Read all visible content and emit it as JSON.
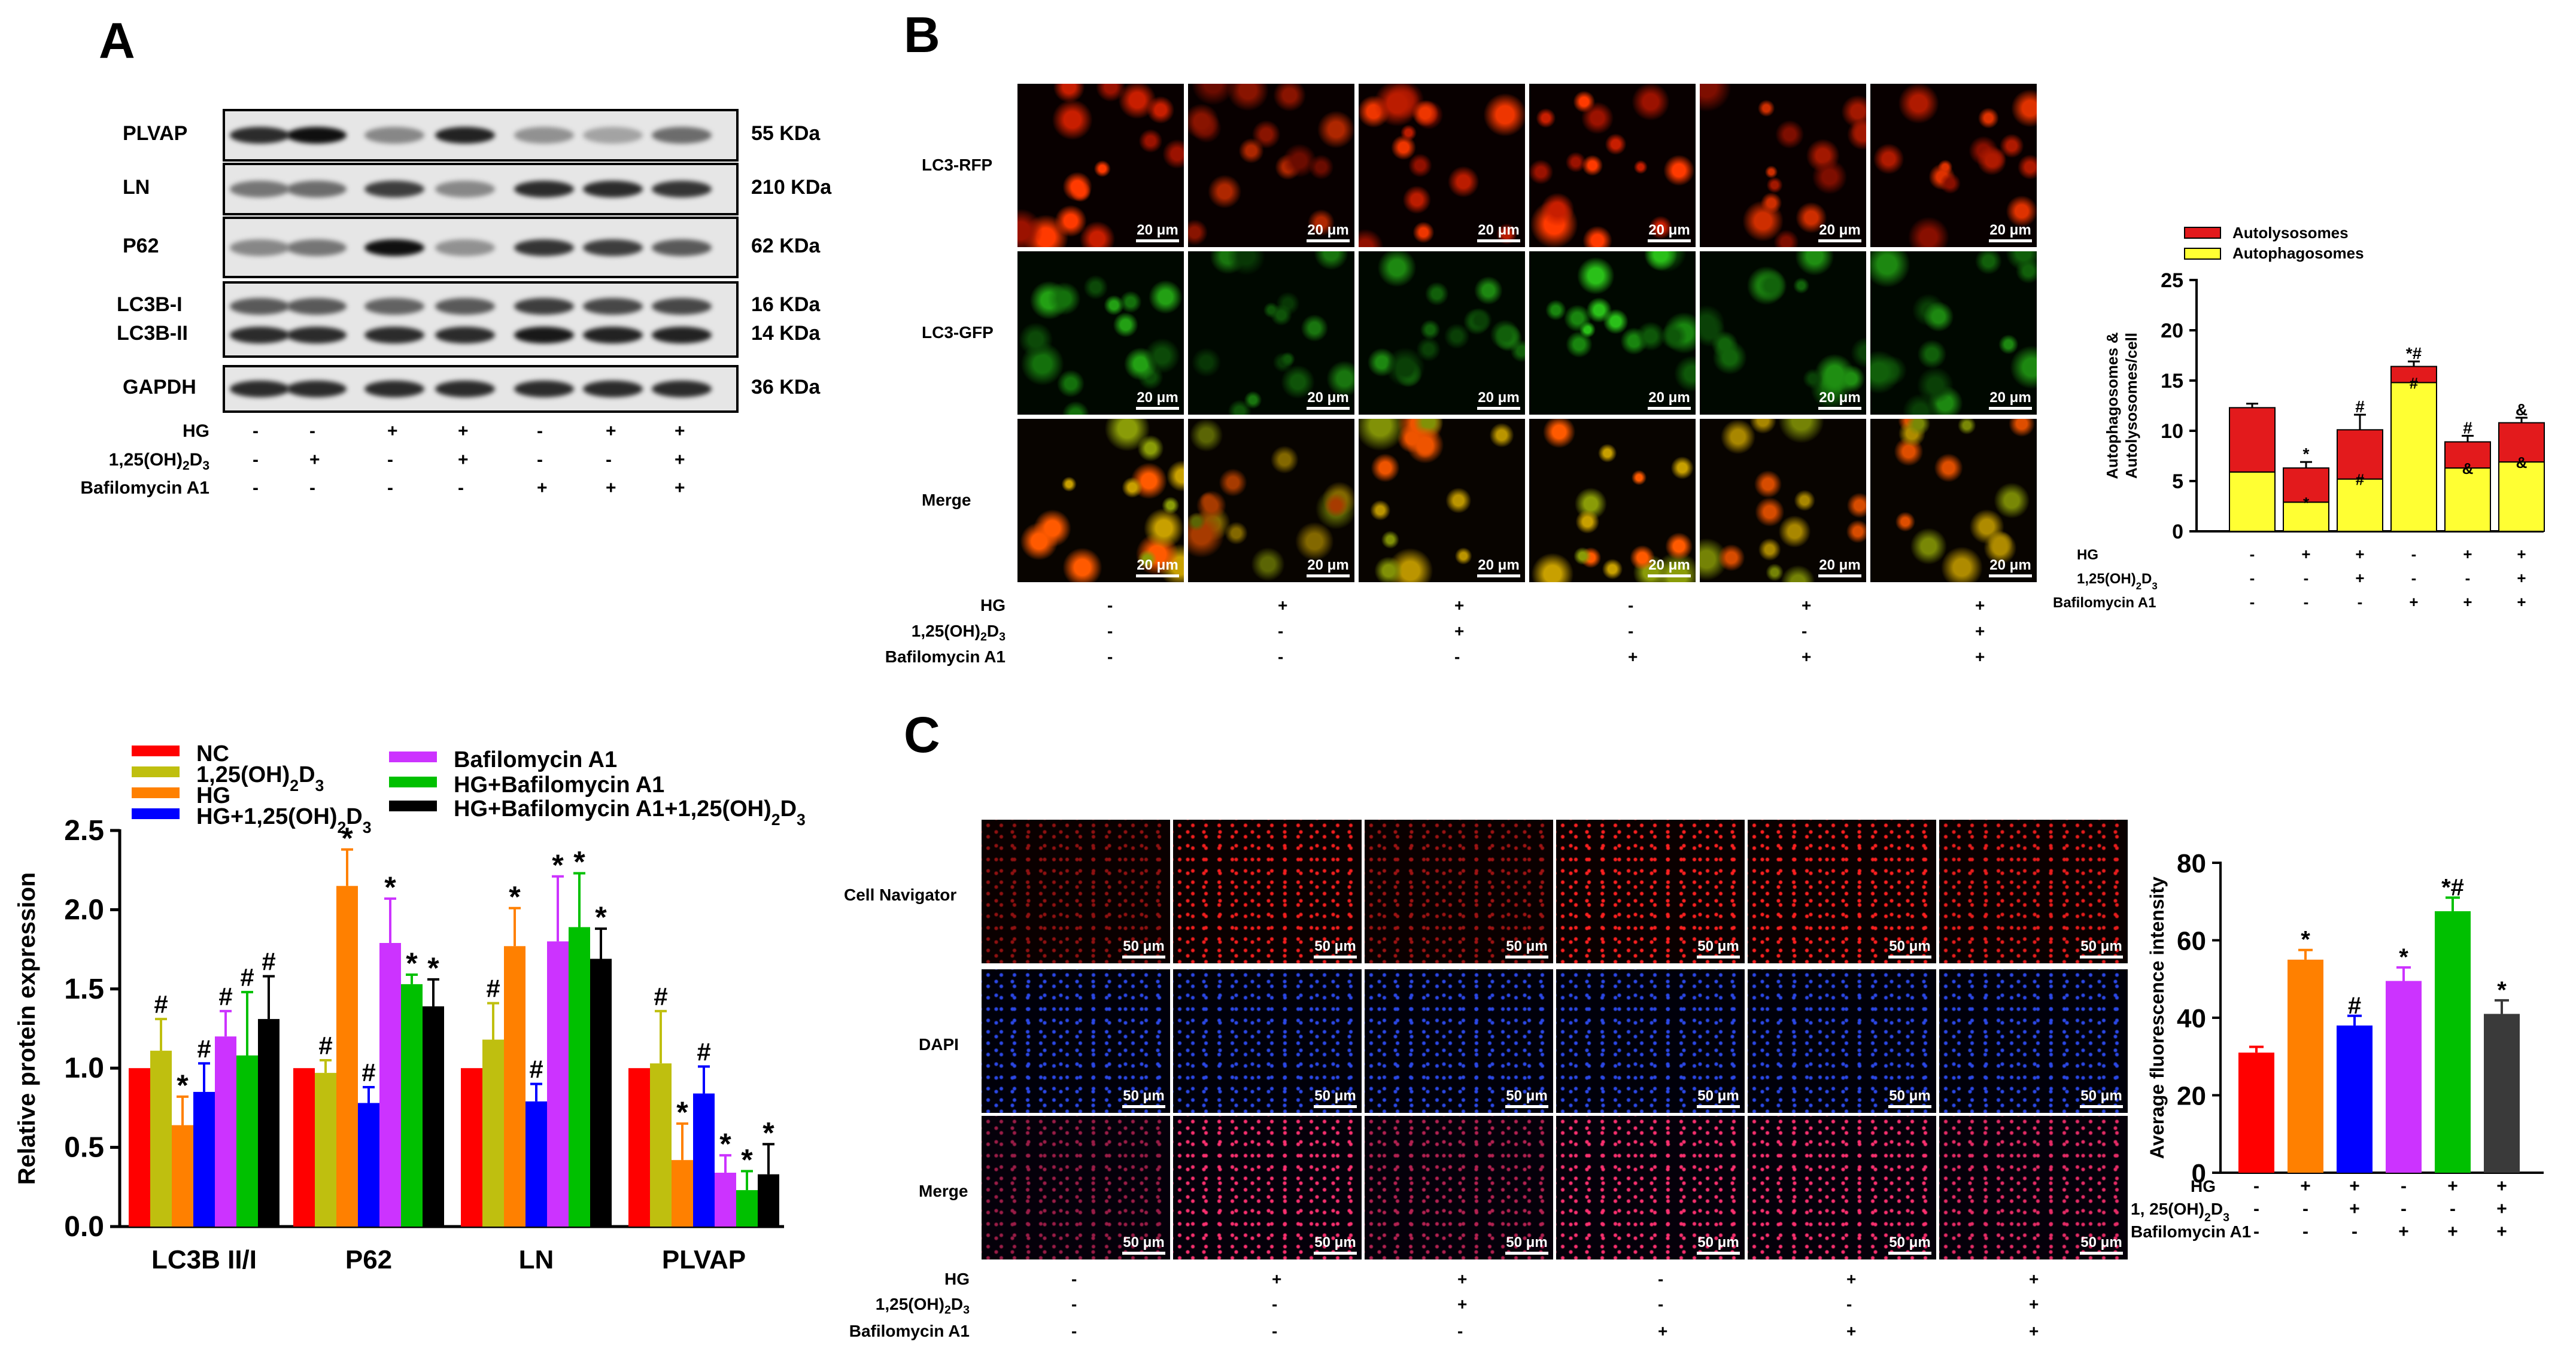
{
  "panels": {
    "a": "A",
    "b": "B",
    "c": "C"
  },
  "colors": {
    "NC": "#ff0000",
    "VD": "#bfbf0f",
    "HG": "#ff8000",
    "HGVD": "#0000ff",
    "BAF": "#cc33ff",
    "HGBAF": "#00c000",
    "HGBAFVD": "#000000",
    "autolysosome": "#e31a1c",
    "autophagosome": "#ffff33",
    "c_last": "#3a3a3a"
  },
  "blot": {
    "proteins": [
      {
        "name": "PLVAP",
        "kda": "55 KDa"
      },
      {
        "name": "LN",
        "kda": "210 KDa"
      },
      {
        "name": "P62",
        "kda": "62 KDa"
      },
      {
        "name": "LC3B-I",
        "kda": "16 KDa"
      },
      {
        "name": "LC3B-II",
        "kda": "14 KDa"
      },
      {
        "name": "GAPDH",
        "kda": "36 KDa"
      }
    ],
    "conditions": [
      {
        "name": "HG",
        "signs": [
          "-",
          "-",
          "+",
          "+",
          "-",
          "+",
          "+"
        ]
      },
      {
        "name": "1,25(OH)2D3",
        "signs": [
          "-",
          "+",
          "-",
          "+",
          "-",
          "-",
          "+"
        ]
      },
      {
        "name": "Bafilomycin A1",
        "signs": [
          "-",
          "-",
          "-",
          "-",
          "+",
          "+",
          "+"
        ]
      }
    ],
    "band_intensity": {
      "PLVAP": [
        0.85,
        1.0,
        0.35,
        0.9,
        0.3,
        0.2,
        0.5
      ],
      "LN": [
        0.45,
        0.5,
        0.75,
        0.35,
        0.85,
        0.85,
        0.8
      ],
      "P62": [
        0.35,
        0.45,
        1.0,
        0.3,
        0.8,
        0.75,
        0.6
      ],
      "LC3B-I": [
        0.6,
        0.6,
        0.55,
        0.6,
        0.75,
        0.7,
        0.7
      ],
      "LC3B-II": [
        0.85,
        0.85,
        0.85,
        0.85,
        0.95,
        0.9,
        0.9
      ],
      "GAPDH": [
        0.85,
        0.85,
        0.85,
        0.85,
        0.85,
        0.85,
        0.85
      ]
    }
  },
  "imaging_b": {
    "rows": [
      "LC3-RFP",
      "LC3-GFP",
      "Merge"
    ],
    "scale": "20 μm",
    "conditions": [
      {
        "name": "HG",
        "signs": [
          "-",
          "+",
          "+",
          "-",
          "+",
          "+"
        ]
      },
      {
        "name": "1,25(OH)2D3",
        "signs": [
          "-",
          "-",
          "+",
          "-",
          "-",
          "+"
        ]
      },
      {
        "name": "Bafilomycin A1",
        "signs": [
          "-",
          "-",
          "-",
          "+",
          "+",
          "+"
        ]
      }
    ]
  },
  "imaging_c": {
    "rows": [
      "Cell Navigator",
      "DAPI",
      "Merge"
    ],
    "scale": "50 μm",
    "conditions": [
      {
        "name": "HG",
        "signs": [
          "-",
          "+",
          "+",
          "-",
          "+",
          "+"
        ]
      },
      {
        "name": "1,25(OH)2D3",
        "signs": [
          "-",
          "-",
          "+",
          "-",
          "-",
          "+"
        ]
      },
      {
        "name": "Bafilomycin A1",
        "signs": [
          "-",
          "-",
          "-",
          "+",
          "+",
          "+"
        ]
      }
    ]
  },
  "chart_data": [
    {
      "id": "a_bar",
      "type": "bar",
      "ylabel": "Relative protein expression",
      "ylim": [
        0,
        2.5
      ],
      "yticks": [
        "0.0",
        "0.5",
        "1.0",
        "1.5",
        "2.0",
        "2.5"
      ],
      "categories": [
        "LC3B II/I",
        "P62",
        "LN",
        "PLVAP"
      ],
      "legend": [
        "NC",
        "1,25(OH)2D3",
        "HG",
        "HG+1,25(OH)2D3",
        "Bafilomycin A1",
        "HG+Bafilomycin A1",
        "HG+Bafilomycin A1+1,25(OH)2D3"
      ],
      "series": [
        {
          "name": "NC",
          "values": [
            1.0,
            1.0,
            1.0,
            1.0
          ],
          "err": [
            0,
            0,
            0,
            0
          ],
          "marks": [
            "",
            "",
            "",
            ""
          ]
        },
        {
          "name": "1,25(OH)2D3",
          "values": [
            1.11,
            0.97,
            1.18,
            1.03
          ],
          "err": [
            0.2,
            0.08,
            0.23,
            0.33
          ],
          "marks": [
            "#",
            "#",
            "#",
            "#"
          ]
        },
        {
          "name": "HG",
          "values": [
            0.64,
            2.15,
            1.77,
            0.42
          ],
          "err": [
            0.18,
            0.23,
            0.24,
            0.23
          ],
          "marks": [
            "*",
            "*",
            "*",
            "*"
          ]
        },
        {
          "name": "HG+1,25(OH)2D3",
          "values": [
            0.85,
            0.78,
            0.79,
            0.84
          ],
          "err": [
            0.18,
            0.1,
            0.11,
            0.17
          ],
          "marks": [
            "#",
            "#",
            "#",
            "#"
          ]
        },
        {
          "name": "Bafilomycin A1",
          "values": [
            1.2,
            1.79,
            1.8,
            0.34
          ],
          "err": [
            0.16,
            0.28,
            0.41,
            0.11
          ],
          "marks": [
            "#",
            "*",
            "*",
            "*"
          ]
        },
        {
          "name": "HG+Bafilomycin A1",
          "values": [
            1.08,
            1.53,
            1.89,
            0.23
          ],
          "err": [
            0.4,
            0.06,
            0.34,
            0.12
          ],
          "marks": [
            "#",
            "*",
            "*",
            "*"
          ]
        },
        {
          "name": "HG+Bafilomycin A1+1,25(OH)2D3",
          "values": [
            1.31,
            1.39,
            1.69,
            0.33
          ],
          "err": [
            0.27,
            0.17,
            0.19,
            0.19
          ],
          "marks": [
            "#",
            "*",
            "*",
            "*"
          ]
        }
      ]
    },
    {
      "id": "b_stacked",
      "type": "bar",
      "stacked": true,
      "ylabel_lines": [
        "Autophagosomes &",
        "Autolysosomes/cell"
      ],
      "ylim": [
        0,
        25
      ],
      "yticks": [
        "0",
        "5",
        "10",
        "15",
        "20",
        "25"
      ],
      "legend": [
        "Autolysosomes",
        "Autophagosomes"
      ],
      "series": [
        {
          "name": "Autophagosomes",
          "values": [
            5.9,
            2.9,
            5.2,
            14.8,
            6.3,
            6.9
          ]
        },
        {
          "name": "Autolysosomes",
          "values": [
            6.4,
            3.4,
            4.9,
            1.6,
            2.6,
            3.9
          ]
        }
      ],
      "total_err": [
        0.4,
        0.6,
        1.5,
        0.5,
        0.6,
        0.5
      ],
      "top_marks": [
        "",
        "*",
        "#",
        "*#",
        "#",
        "&"
      ],
      "inner_marks": [
        "",
        "*",
        "#",
        "#",
        "&",
        "&"
      ],
      "conditions": [
        {
          "name": "HG",
          "signs": [
            "-",
            "+",
            "+",
            "-",
            "+",
            "+"
          ]
        },
        {
          "name": "1,25(OH)2D3",
          "signs": [
            "-",
            "-",
            "+",
            "-",
            "-",
            "+"
          ]
        },
        {
          "name": "Bafilomycin A1",
          "signs": [
            "-",
            "-",
            "-",
            "+",
            "+",
            "+"
          ]
        }
      ]
    },
    {
      "id": "c_bar",
      "type": "bar",
      "ylabel": "Average fluorescence intensity",
      "ylim": [
        0,
        80
      ],
      "yticks": [
        "0",
        "20",
        "40",
        "60",
        "80"
      ],
      "values": [
        31,
        55,
        38,
        49.5,
        67.5,
        41
      ],
      "err": [
        1.5,
        2.5,
        2.5,
        3.5,
        3.5,
        3.5
      ],
      "marks": [
        "",
        "*",
        "#",
        "*",
        "*#",
        "*"
      ],
      "conditions": [
        {
          "name": "HG",
          "signs": [
            "-",
            "+",
            "+",
            "-",
            "+",
            "+"
          ]
        },
        {
          "name": "1, 25(OH)2D3",
          "signs": [
            "-",
            "-",
            "+",
            "-",
            "-",
            "+"
          ]
        },
        {
          "name": "Bafilomycin A1",
          "signs": [
            "-",
            "-",
            "-",
            "+",
            "+",
            "+"
          ]
        }
      ]
    }
  ]
}
